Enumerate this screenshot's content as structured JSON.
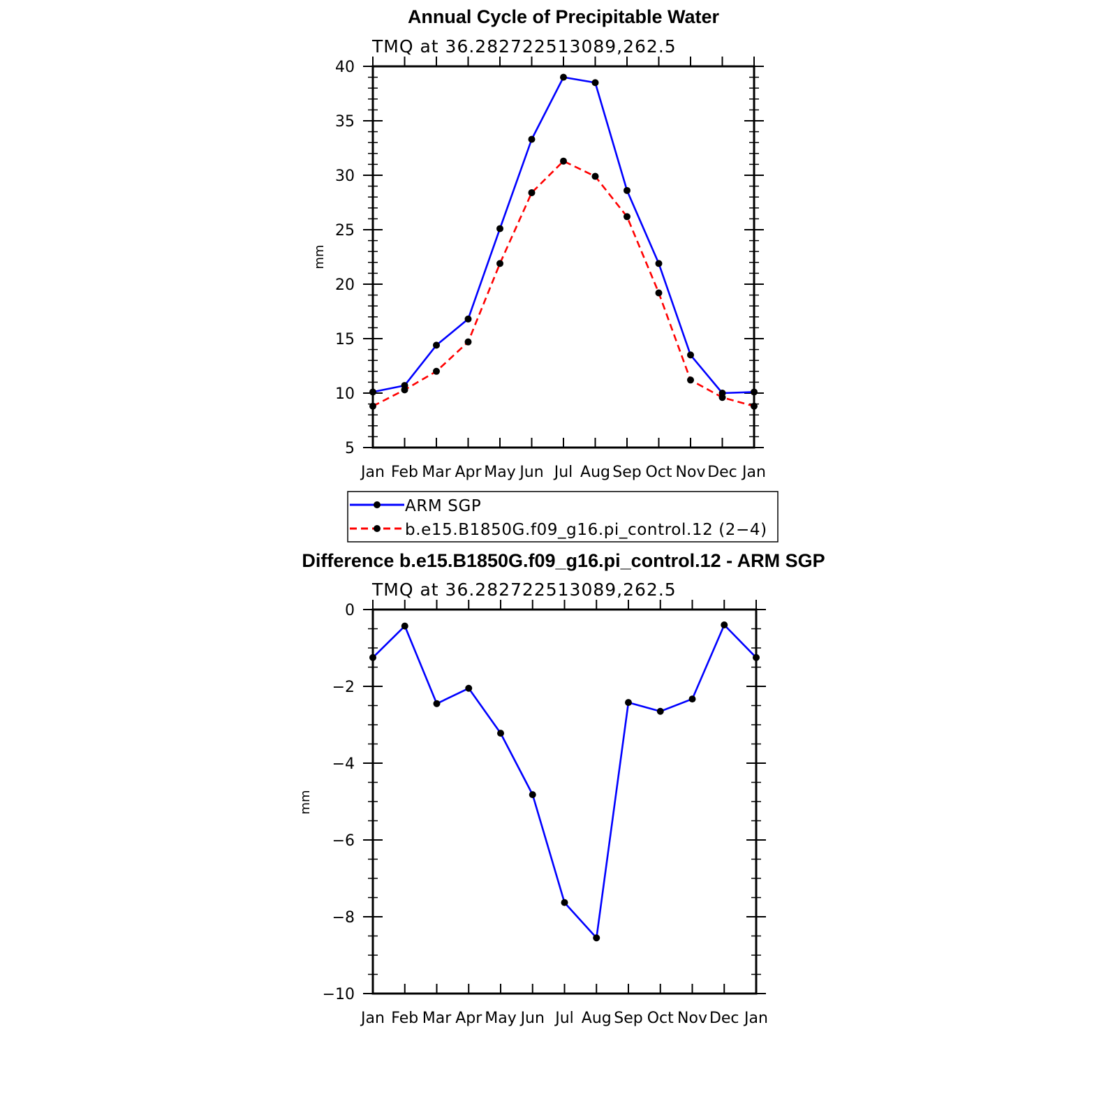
{
  "chart_data": [
    {
      "type": "line",
      "title": "Annual Cycle of Precipitable Water",
      "subtitle": "TMQ at 36.282722513089,262.5",
      "xlabel": "",
      "ylabel": "mm",
      "categories": [
        "Jan",
        "Feb",
        "Mar",
        "Apr",
        "May",
        "Jun",
        "Jul",
        "Aug",
        "Sep",
        "Oct",
        "Nov",
        "Dec",
        "Jan"
      ],
      "ylim": [
        5,
        40
      ],
      "yticks": [
        "5",
        "10",
        "15",
        "20",
        "25",
        "30",
        "35",
        "40"
      ],
      "series": [
        {
          "name": "ARM SGP",
          "color": "#0000ff",
          "dash": "solid",
          "values": [
            10.1,
            10.7,
            14.4,
            16.8,
            25.1,
            33.3,
            39.0,
            38.5,
            28.6,
            21.9,
            13.5,
            10.0,
            10.1
          ]
        },
        {
          "name": "b.e15.B1850G.f09_g16.pi_control.12 (2−4)",
          "color": "#ff0000",
          "dash": "dashed",
          "values": [
            8.8,
            10.3,
            12.0,
            14.7,
            21.9,
            28.4,
            31.3,
            29.9,
            26.2,
            19.2,
            11.2,
            9.6,
            8.8
          ]
        }
      ],
      "legend_position": "bottom"
    },
    {
      "type": "line",
      "title": "Difference b.e15.B1850G.f09_g16.pi_control.12 - ARM SGP",
      "subtitle": "TMQ at 36.282722513089,262.5",
      "xlabel": "",
      "ylabel": "mm",
      "categories": [
        "Jan",
        "Feb",
        "Mar",
        "Apr",
        "May",
        "Jun",
        "Jul",
        "Aug",
        "Sep",
        "Oct",
        "Nov",
        "Dec",
        "Jan"
      ],
      "ylim": [
        -10,
        0
      ],
      "yticks": [
        "−10",
        "−8",
        "−6",
        "−4",
        "−2",
        "0"
      ],
      "series": [
        {
          "name": "",
          "color": "#0000ff",
          "dash": "solid",
          "values": [
            -1.25,
            -0.43,
            -2.45,
            -2.05,
            -3.22,
            -4.82,
            -7.63,
            -8.55,
            -2.42,
            -2.65,
            -2.33,
            -0.4,
            -1.25
          ]
        }
      ],
      "legend_position": "none"
    }
  ]
}
